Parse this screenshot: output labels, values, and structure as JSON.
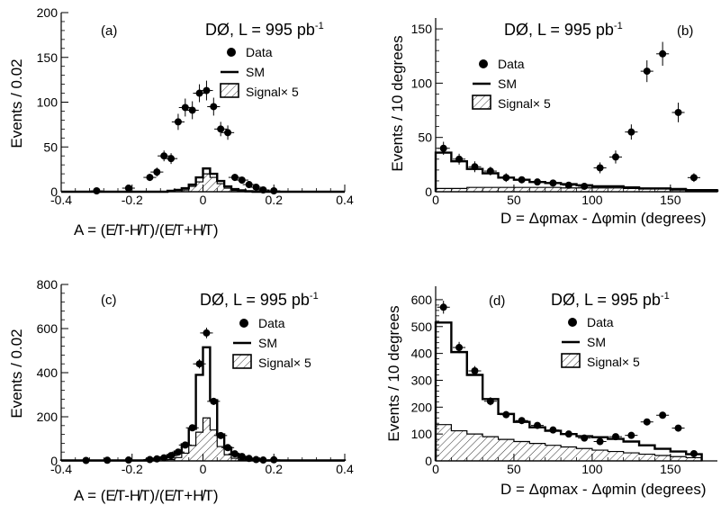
{
  "chart_data": [
    {
      "type": "bar",
      "panel_label": "(a)",
      "experiment": "DØ, L = 995 pb",
      "lumi_exponent": "-1",
      "xlabel": "A = (E̸T-H̸T)/(E̸T+H̸T)",
      "ylabel": "Events / 0.02",
      "xlim": [
        -0.4,
        0.4
      ],
      "ylim": [
        0,
        200
      ],
      "xticks": [
        -0.4,
        -0.2,
        0,
        0.2,
        0.4
      ],
      "xtick_labels": [
        "-0.4",
        "-0.2",
        "0",
        "0.2",
        "0.4"
      ],
      "yticks": [
        0,
        50,
        100,
        150,
        200
      ],
      "ytick_labels": [
        "0",
        "50",
        "100",
        "150",
        "200"
      ],
      "legend": {
        "placement": "top-right",
        "entries": [
          "Data",
          "SM",
          "Signal× 5"
        ]
      },
      "data_points": {
        "x": [
          -0.3,
          -0.21,
          -0.15,
          -0.13,
          -0.11,
          -0.09,
          -0.07,
          -0.05,
          -0.03,
          -0.01,
          0.01,
          0.03,
          0.05,
          0.07,
          0.09,
          0.11,
          0.13,
          0.15,
          0.17,
          0.2
        ],
        "y": [
          1,
          4,
          16,
          22,
          40,
          37,
          78,
          94,
          91,
          110,
          113,
          95,
          70,
          66,
          16,
          13,
          8,
          5,
          2,
          1
        ],
        "yerr": [
          1,
          2,
          4,
          5,
          6,
          6,
          9,
          10,
          10,
          10,
          11,
          10,
          8,
          8,
          4,
          4,
          3,
          2,
          1.5,
          1
        ]
      },
      "sm_histogram": {
        "bin_edges": [
          -0.4,
          -0.1,
          -0.08,
          -0.06,
          -0.04,
          -0.02,
          0,
          0.02,
          0.04,
          0.06,
          0.08,
          0.1,
          0.12,
          0.14,
          0.4
        ],
        "values": [
          0,
          1,
          2,
          4,
          8,
          16,
          26,
          20,
          12,
          6,
          3,
          1.5,
          0.5,
          0
        ]
      },
      "signal_histogram": {
        "bin_edges": [
          -0.4,
          -0.06,
          -0.04,
          -0.02,
          0,
          0.02,
          0.04,
          0.06,
          0.08,
          0.1,
          0.4
        ],
        "values": [
          0,
          2,
          6,
          11,
          20,
          16,
          9,
          4,
          1.5,
          0
        ]
      }
    },
    {
      "type": "bar",
      "panel_label": "(b)",
      "experiment": "DØ, L = 995 pb",
      "lumi_exponent": "-1",
      "xlabel": "D = Δφmax - Δφmin (degrees)",
      "ylabel": "Events / 10 degrees",
      "xlim": [
        0,
        180
      ],
      "ylim": [
        0,
        160
      ],
      "xticks": [
        0,
        50,
        100,
        150
      ],
      "xtick_labels": [
        "0",
        "50",
        "100",
        "150"
      ],
      "yticks": [
        0,
        50,
        100,
        150
      ],
      "ytick_labels": [
        "0",
        "50",
        "100",
        "150"
      ],
      "legend": {
        "placement": "top-left",
        "entries": [
          "Data",
          "SM",
          "Signal× 5"
        ]
      },
      "data_points": {
        "x": [
          5,
          15,
          25,
          35,
          45,
          55,
          65,
          75,
          85,
          95,
          105,
          115,
          125,
          135,
          145,
          155,
          165
        ],
        "y": [
          40,
          30,
          23,
          19,
          13,
          11,
          9,
          8,
          6,
          5,
          22,
          32,
          55,
          111,
          127,
          73,
          13
        ],
        "yerr": [
          6,
          5,
          5,
          4,
          4,
          3,
          3,
          3,
          2.5,
          2.5,
          5,
          6,
          7,
          10,
          11,
          9,
          4
        ]
      },
      "sm_histogram": {
        "bin_edges": [
          0,
          10,
          20,
          30,
          40,
          50,
          60,
          70,
          80,
          90,
          100,
          110,
          120,
          130,
          140,
          150,
          160,
          170,
          180
        ],
        "values": [
          36,
          28,
          21,
          17,
          13,
          11,
          9,
          8,
          7,
          6,
          5,
          5,
          4,
          3,
          3,
          2,
          1,
          1
        ]
      },
      "signal_histogram": {
        "bin_edges": [
          0,
          20,
          40,
          60,
          80,
          100,
          120,
          140,
          160,
          180
        ],
        "values": [
          3,
          4,
          4,
          4,
          3.5,
          3.5,
          3,
          3,
          2
        ]
      }
    },
    {
      "type": "bar",
      "panel_label": "(c)",
      "experiment": "DØ, L = 995 pb",
      "lumi_exponent": "-1",
      "xlabel": "A = (E̸T-H̸T)/(E̸T+H̸T)",
      "ylabel": "Events / 0.02",
      "xlim": [
        -0.4,
        0.4
      ],
      "ylim": [
        0,
        800
      ],
      "xticks": [
        -0.4,
        -0.2,
        0,
        0.2,
        0.4
      ],
      "xtick_labels": [
        "-0.4",
        "-0.2",
        "0",
        "0.2",
        "0.4"
      ],
      "yticks": [
        0,
        200,
        400,
        600,
        800
      ],
      "ytick_labels": [
        "0",
        "200",
        "400",
        "600",
        "800"
      ],
      "legend": {
        "placement": "top-right",
        "entries": [
          "Data",
          "SM",
          "Signal× 5"
        ]
      },
      "data_points": {
        "x": [
          -0.33,
          -0.27,
          -0.21,
          -0.15,
          -0.13,
          -0.11,
          -0.09,
          -0.07,
          -0.05,
          -0.03,
          -0.01,
          0.01,
          0.03,
          0.05,
          0.07,
          0.09,
          0.11,
          0.13,
          0.15,
          0.17,
          0.2
        ],
        "y": [
          2,
          3,
          4,
          6,
          9,
          14,
          24,
          40,
          72,
          150,
          440,
          580,
          270,
          115,
          60,
          32,
          20,
          11,
          6,
          4,
          5
        ],
        "yerr": [
          1.5,
          2,
          2,
          2.5,
          3,
          4,
          5,
          6,
          8,
          12,
          21,
          24,
          16,
          11,
          8,
          6,
          4,
          3,
          2.5,
          2,
          2
        ]
      },
      "sm_histogram": {
        "bin_edges": [
          -0.4,
          -0.16,
          -0.14,
          -0.12,
          -0.1,
          -0.08,
          -0.06,
          -0.04,
          -0.02,
          0,
          0.02,
          0.04,
          0.06,
          0.08,
          0.1,
          0.12,
          0.14,
          0.16,
          0.4
        ],
        "values": [
          2,
          6,
          10,
          16,
          26,
          42,
          75,
          145,
          390,
          515,
          275,
          120,
          60,
          32,
          18,
          10,
          6,
          2
        ]
      },
      "signal_histogram": {
        "bin_edges": [
          -0.4,
          -0.1,
          -0.08,
          -0.06,
          -0.04,
          -0.02,
          0,
          0.02,
          0.04,
          0.06,
          0.08,
          0.1,
          0.12,
          0.4
        ],
        "values": [
          0,
          6,
          15,
          35,
          70,
          130,
          195,
          140,
          65,
          28,
          12,
          5,
          0
        ]
      }
    },
    {
      "type": "bar",
      "panel_label": "(d)",
      "experiment": "DØ, L = 995 pb",
      "lumi_exponent": "-1",
      "xlabel": "D = Δφmax - Δφmin (degrees)",
      "ylabel": "Events / 10 degrees",
      "xlim": [
        0,
        180
      ],
      "ylim": [
        0,
        650
      ],
      "xticks": [
        0,
        50,
        100,
        150
      ],
      "xtick_labels": [
        "0",
        "50",
        "100",
        "150"
      ],
      "yticks": [
        0,
        100,
        200,
        300,
        400,
        500,
        600
      ],
      "ytick_labels": [
        "0",
        "100",
        "200",
        "300",
        "400",
        "500",
        "600"
      ],
      "legend": {
        "placement": "top-right",
        "entries": [
          "Data",
          "SM",
          "Signal× 5"
        ]
      },
      "data_points": {
        "x": [
          5,
          15,
          25,
          35,
          45,
          55,
          65,
          75,
          85,
          95,
          105,
          115,
          125,
          135,
          145,
          155,
          165
        ],
        "y": [
          572,
          422,
          335,
          222,
          172,
          150,
          132,
          115,
          100,
          85,
          72,
          90,
          95,
          145,
          170,
          122,
          27
        ],
        "yerr": [
          24,
          21,
          18,
          15,
          13,
          12,
          12,
          11,
          10,
          9,
          9,
          10,
          10,
          12,
          13,
          11,
          5
        ]
      },
      "sm_histogram": {
        "bin_edges": [
          0,
          10,
          20,
          30,
          40,
          50,
          60,
          70,
          80,
          90,
          100,
          110,
          120,
          130,
          140,
          150,
          160,
          170
        ],
        "values": [
          515,
          405,
          320,
          230,
          175,
          145,
          125,
          112,
          100,
          92,
          88,
          82,
          72,
          58,
          45,
          35,
          25
        ]
      },
      "signal_histogram": {
        "bin_edges": [
          0,
          10,
          20,
          30,
          40,
          50,
          60,
          70,
          80,
          90,
          100,
          110,
          120,
          130,
          140,
          150,
          160,
          170
        ],
        "values": [
          135,
          112,
          100,
          90,
          80,
          72,
          65,
          58,
          52,
          46,
          40,
          35,
          30,
          25,
          20,
          16,
          12
        ]
      }
    }
  ]
}
